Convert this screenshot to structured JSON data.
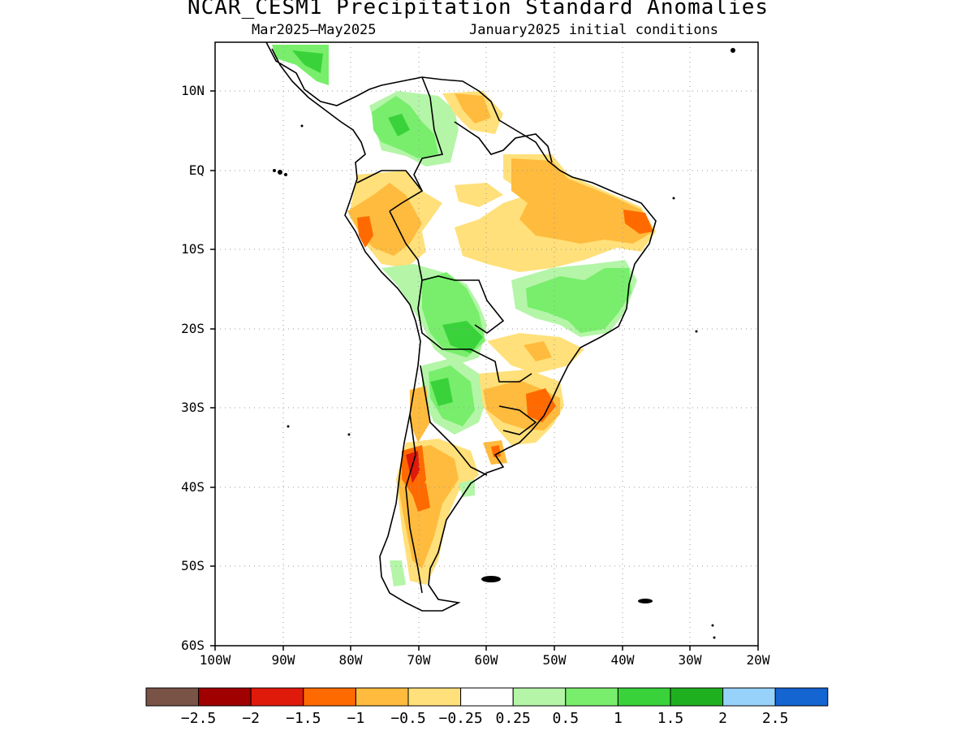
{
  "header": {
    "title": "NCAR_CESM1 Precipitation Standard Anomalies",
    "period": "Mar2025–May2025",
    "init": "January2025 initial conditions"
  },
  "map": {
    "lon_range": [
      -100,
      -20
    ],
    "lat_range": [
      -60,
      6
    ],
    "lat_ticks": [
      {
        "value": 10,
        "label": "10N"
      },
      {
        "value": 0,
        "label": "EQ"
      },
      {
        "value": -10,
        "label": "10S"
      },
      {
        "value": -20,
        "label": "20S"
      },
      {
        "value": -30,
        "label": "30S"
      },
      {
        "value": -40,
        "label": "40S"
      },
      {
        "value": -50,
        "label": "50S"
      },
      {
        "value": -60,
        "label": "60S"
      }
    ],
    "lon_ticks": [
      {
        "value": -100,
        "label": "100W"
      },
      {
        "value": -90,
        "label": "90W"
      },
      {
        "value": -80,
        "label": "80W"
      },
      {
        "value": -70,
        "label": "70W"
      },
      {
        "value": -60,
        "label": "60W"
      },
      {
        "value": -50,
        "label": "50W"
      },
      {
        "value": -40,
        "label": "40W"
      },
      {
        "value": -30,
        "label": "30W"
      },
      {
        "value": -20,
        "label": "20W"
      }
    ],
    "colors": {
      "lt_-2.5": "#7a5347",
      "-2.5_-2": "#a00000",
      "-2_-1.5": "#e01a0a",
      "-1.5_-1": "#ff6a00",
      "-1_-0.5": "#ffbb3d",
      "-0.5_-0.25": "#ffe07a",
      "-0.25_0.25": "#ffffff",
      "0.25_0.5": "#b4f5a8",
      "0.5_1": "#78ee6c",
      "1_1.5": "#3ad23a",
      "1.5_2": "#1fb01f",
      "2_2.5": "#96d2fa",
      "gt_2.5": "#1464d2"
    }
  },
  "colorbar": {
    "colors": [
      "#7a5347",
      "#a00000",
      "#e01a0a",
      "#ff6a00",
      "#ffbb3d",
      "#ffe07a",
      "#ffffff",
      "#b4f5a8",
      "#78ee6c",
      "#3ad23a",
      "#1fb01f",
      "#96d2fa",
      "#1464d2"
    ],
    "labels": [
      "−2.5",
      "−2",
      "−1.5",
      "−1",
      "−0.5",
      "−0.25",
      "0.25",
      "0.5",
      "1",
      "1.5",
      "2",
      "2.5"
    ]
  }
}
